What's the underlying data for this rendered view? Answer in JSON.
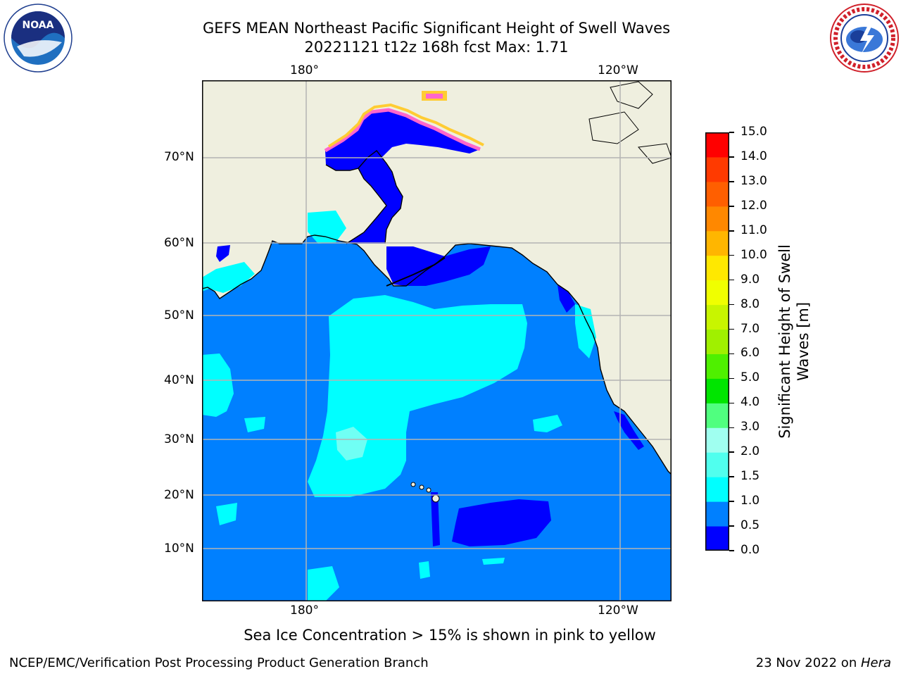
{
  "header": {
    "title_line1": "GEFS MEAN Northeast Pacific Significant Height of Swell Waves",
    "title_line2": "20221121 t12z 168h fcst   Max: 1.71"
  },
  "logos": {
    "noaa_text": "NOAA",
    "nws_text": "NATIONAL WEATHER SERVICE"
  },
  "map": {
    "lon_labels": [
      "180°",
      "120°W"
    ],
    "lat_labels": [
      "70°N",
      "60°N",
      "50°N",
      "40°N",
      "30°N",
      "20°N",
      "10°N"
    ],
    "colors": {
      "land": "#efefdf",
      "ocean": "#0080ff",
      "low": "#0000ff",
      "mid": "#00ffff",
      "high": "#a0fff0",
      "ice_pink": "#ff66cc",
      "ice_yellow": "#ffcc33",
      "grid": "#b4b4b4"
    }
  },
  "colorbar": {
    "label_line1": "Significant Height of Swell",
    "label_line2": "Waves [m]",
    "ticks": [
      "0.0",
      "0.5",
      "1.0",
      "1.5",
      "2.0",
      "3.0",
      "4.0",
      "5.0",
      "6.0",
      "7.0",
      "8.0",
      "9.0",
      "10.0",
      "11.0",
      "12.0",
      "13.0",
      "14.0",
      "15.0"
    ],
    "colors": [
      "#0000ff",
      "#0080ff",
      "#00ffff",
      "#50ffee",
      "#a0fff0",
      "#50ff7f",
      "#00e500",
      "#4ff000",
      "#a0f000",
      "#c8f500",
      "#f0ff00",
      "#ffe800",
      "#ffb600",
      "#ff8800",
      "#ff5f00",
      "#ff3a00",
      "#ff0000"
    ]
  },
  "note": "Sea Ice Concentration > 15% is shown in pink to yellow",
  "footer": {
    "left": "NCEP/EMC/Verification Post Processing Product Generation Branch",
    "right_date": "23 Nov 2022 on ",
    "right_host": "Hera"
  }
}
